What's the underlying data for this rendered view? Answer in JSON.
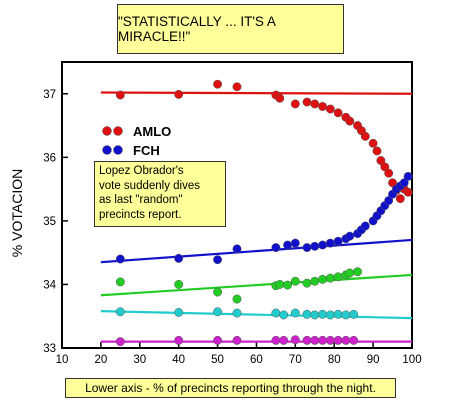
{
  "title": "\"STATISTICALLY ... IT'S A MIRACLE!!\"",
  "annotation": "Lopez Obrador's\nvote suddenly dives\nas last \"random\"\nprecincts report.",
  "footer": "Lower axis - % of precincts reporting through the night.",
  "chart_data": {
    "type": "scatter",
    "ylabel": "% VOTACION",
    "xlabel": "",
    "xlim": [
      10,
      100
    ],
    "ylim": [
      33,
      37.5
    ],
    "xticks": [
      10,
      20,
      30,
      40,
      50,
      60,
      70,
      80,
      90,
      100
    ],
    "yticks": [
      33,
      34,
      35,
      36,
      37
    ],
    "legend": {
      "position": "left",
      "entries": [
        {
          "label": "AMLO",
          "color": "#dd1111"
        },
        {
          "label": "FCH",
          "color": "#1111cc"
        }
      ]
    },
    "series": [
      {
        "name": "AMLO",
        "color": "#dd1111",
        "points": [
          [
            25,
            36.98
          ],
          [
            40,
            36.99
          ],
          [
            50,
            37.15
          ],
          [
            55,
            37.11
          ],
          [
            65,
            36.98
          ],
          [
            66,
            36.93
          ],
          [
            70,
            36.84
          ],
          [
            73,
            36.87
          ],
          [
            75,
            36.84
          ],
          [
            77,
            36.8
          ],
          [
            79,
            36.76
          ],
          [
            81,
            36.7
          ],
          [
            83,
            36.63
          ],
          [
            84,
            36.57
          ],
          [
            86,
            36.5
          ],
          [
            87,
            36.42
          ],
          [
            88,
            36.33
          ],
          [
            90,
            36.22
          ],
          [
            91,
            36.1
          ],
          [
            92,
            35.95
          ],
          [
            93,
            35.85
          ],
          [
            94,
            35.75
          ],
          [
            95,
            35.6
          ],
          [
            96,
            35.48
          ],
          [
            97,
            35.35
          ],
          [
            98,
            35.5
          ],
          [
            99,
            35.45
          ]
        ],
        "trend": [
          [
            20,
            37.02
          ],
          [
            100,
            37.0
          ]
        ]
      },
      {
        "name": "FCH",
        "color": "#1111cc",
        "points": [
          [
            25,
            34.4
          ],
          [
            40,
            34.41
          ],
          [
            50,
            34.39
          ],
          [
            55,
            34.56
          ],
          [
            65,
            34.58
          ],
          [
            68,
            34.62
          ],
          [
            70,
            34.65
          ],
          [
            73,
            34.58
          ],
          [
            75,
            34.6
          ],
          [
            77,
            34.62
          ],
          [
            79,
            34.65
          ],
          [
            81,
            34.68
          ],
          [
            83,
            34.72
          ],
          [
            84,
            34.76
          ],
          [
            86,
            34.8
          ],
          [
            87,
            34.86
          ],
          [
            88,
            34.92
          ],
          [
            90,
            35.0
          ],
          [
            91,
            35.08
          ],
          [
            92,
            35.16
          ],
          [
            93,
            35.24
          ],
          [
            94,
            35.32
          ],
          [
            95,
            35.42
          ],
          [
            96,
            35.5
          ],
          [
            97,
            35.55
          ],
          [
            98,
            35.6
          ],
          [
            99,
            35.7
          ]
        ],
        "trend": [
          [
            20,
            34.35
          ],
          [
            100,
            34.7
          ]
        ]
      },
      {
        "name": "",
        "color": "#22cc22",
        "points": [
          [
            25,
            34.04
          ],
          [
            40,
            34.0
          ],
          [
            50,
            33.88
          ],
          [
            55,
            33.77
          ],
          [
            65,
            33.98
          ],
          [
            66,
            34.0
          ],
          [
            68,
            33.99
          ],
          [
            70,
            34.05
          ],
          [
            73,
            34.02
          ],
          [
            75,
            34.05
          ],
          [
            77,
            34.08
          ],
          [
            79,
            34.1
          ],
          [
            81,
            34.12
          ],
          [
            83,
            34.15
          ],
          [
            84,
            34.18
          ],
          [
            86,
            34.2
          ]
        ],
        "trend": [
          [
            20,
            33.83
          ],
          [
            100,
            34.15
          ]
        ]
      },
      {
        "name": "",
        "color": "#22cccc",
        "points": [
          [
            25,
            33.57
          ],
          [
            40,
            33.56
          ],
          [
            50,
            33.57
          ],
          [
            55,
            33.55
          ],
          [
            65,
            33.55
          ],
          [
            67,
            33.52
          ],
          [
            70,
            33.55
          ],
          [
            73,
            33.53
          ],
          [
            75,
            33.52
          ],
          [
            77,
            33.53
          ],
          [
            79,
            33.52
          ],
          [
            81,
            33.53
          ],
          [
            83,
            33.52
          ],
          [
            85,
            33.53
          ]
        ],
        "trend": [
          [
            20,
            33.58
          ],
          [
            100,
            33.47
          ]
        ]
      },
      {
        "name": "",
        "color": "#cc22cc",
        "points": [
          [
            25,
            33.1
          ],
          [
            40,
            33.12
          ],
          [
            50,
            33.12
          ],
          [
            55,
            33.12
          ],
          [
            65,
            33.12
          ],
          [
            67,
            33.12
          ],
          [
            70,
            33.13
          ],
          [
            73,
            33.12
          ],
          [
            75,
            33.12
          ],
          [
            77,
            33.12
          ],
          [
            79,
            33.12
          ],
          [
            81,
            33.12
          ],
          [
            83,
            33.12
          ],
          [
            85,
            33.12
          ]
        ],
        "trend": [
          [
            20,
            33.1
          ],
          [
            100,
            33.1
          ]
        ]
      }
    ]
  }
}
